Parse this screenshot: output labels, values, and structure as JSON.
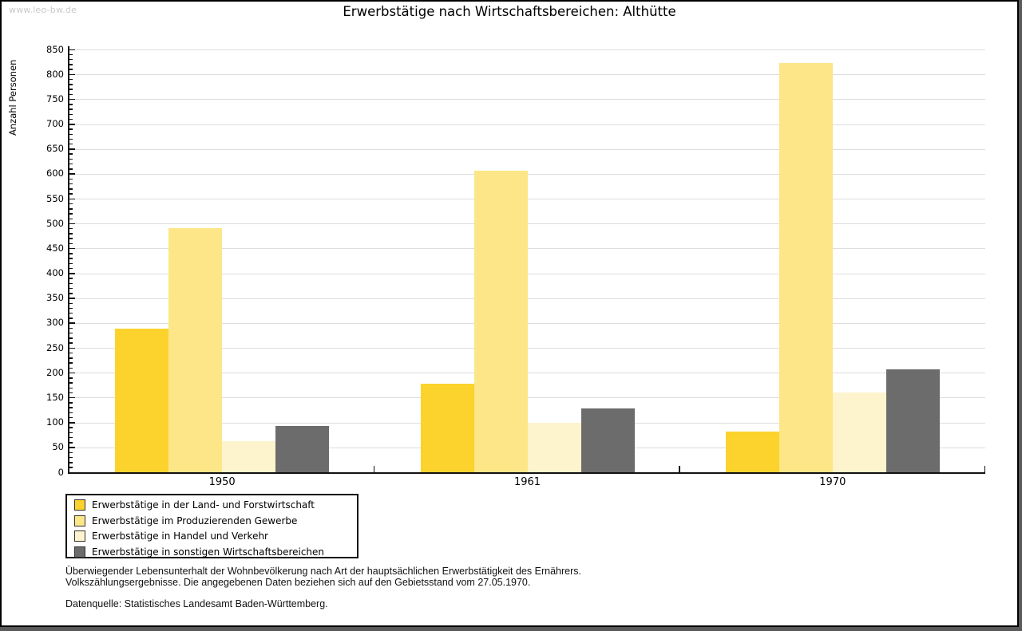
{
  "watermark": "www.leo-bw.de",
  "chart_data": {
    "type": "bar",
    "title": "Erwerbstätige nach Wirtschaftsbereichen: Althütte",
    "ylabel": "Anzahl Personen",
    "xlabel": "",
    "categories": [
      "1950",
      "1961",
      "1970"
    ],
    "series": [
      {
        "name": "Erwerbstätige in der Land- und Forstwirtschaft",
        "color": "#FCD22C",
        "values": [
          289,
          178,
          82
        ]
      },
      {
        "name": "Erwerbstätige im Produzierenden Gewerbe",
        "color": "#FCE687",
        "values": [
          490,
          606,
          822
        ]
      },
      {
        "name": "Erwerbstätige in Handel und Verkehr",
        "color": "#FDF3CD",
        "values": [
          62,
          100,
          160
        ]
      },
      {
        "name": "Erwerbstätige in sonstigen Wirtschaftsbereichen",
        "color": "#6C6C6C",
        "values": [
          93,
          128,
          207
        ]
      }
    ],
    "ylim": [
      0,
      850
    ],
    "ytick_step": 50,
    "ytick_minor_step": 10,
    "grid": true,
    "gridline_color": "#DDDDDD",
    "axis_color": "#111111",
    "legend_position": "bottom-left"
  },
  "footnotes": {
    "line1": "Überwiegender Lebensunterhalt der Wohnbevölkerung nach Art der hauptsächlichen Erwerbstätigkeit des Ernährers.",
    "line2": "Volkszählungsergebnisse. Die angegebenen Daten beziehen sich auf den Gebietsstand vom 27.05.1970.",
    "source": "Datenquelle: Statistisches Landesamt Baden-Württemberg."
  }
}
